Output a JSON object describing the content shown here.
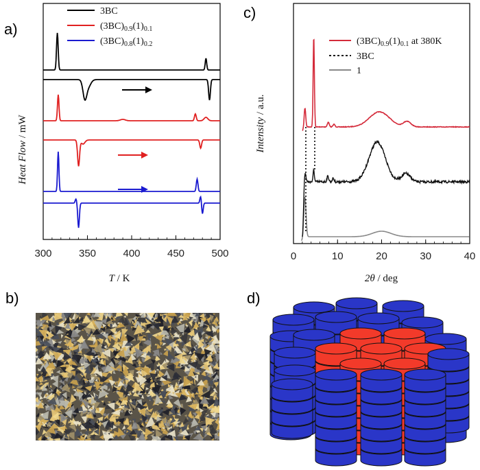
{
  "labels": {
    "a": "a)",
    "b": "b)",
    "c": "c)",
    "d": "d)"
  },
  "chart_data": [
    {
      "panel": "a",
      "type": "line",
      "xlabel": "T / K",
      "ylabel": "Heat Flow / mW",
      "xlim": [
        300,
        500
      ],
      "xticks": [
        "300",
        "350",
        "400",
        "450",
        "500"
      ],
      "series": [
        {
          "name": "3BC",
          "color": "#000000",
          "heating_peaks_K": [
            316,
            484
          ],
          "cooling_peaks_K": [
            348,
            488
          ]
        },
        {
          "name": "(3BC)0.9(1)0.1",
          "color": "#e02020",
          "heating_peaks_K": [
            317,
            474
          ],
          "cooling_peaks_K": [
            341,
            478
          ]
        },
        {
          "name": "(3BC)0.8(1)0.2",
          "color": "#1a1ad0",
          "heating_peaks_K": [
            317,
            475
          ],
          "cooling_peaks_K": [
            340,
            479
          ]
        }
      ]
    },
    {
      "panel": "c",
      "type": "line",
      "xlabel": "2θ / deg",
      "ylabel": "Intensity / a.u.",
      "xlim": [
        0,
        40
      ],
      "xticks": [
        "0",
        "10",
        "20",
        "30",
        "40"
      ],
      "series": [
        {
          "name": "(3BC)0.9(1)0.1 at 380K",
          "color": "#d42a3a",
          "peaks_deg": [
            2.6,
            4.6,
            7.9,
            19.5,
            25.8
          ]
        },
        {
          "name": "3BC",
          "color": "#111111",
          "peaks_deg": [
            2.6,
            4.6,
            7.8,
            19.0,
            25.5
          ]
        },
        {
          "name": "1",
          "color": "#888888",
          "peaks_deg": [
            2.6,
            20.0
          ]
        }
      ]
    }
  ],
  "panel_a": {
    "xlabel_sym": "T",
    "xlabel_unit": " / K",
    "ylabel_sym": "Heat Flow",
    "ylabel_unit": " / mW",
    "legend": {
      "l1": "3BC",
      "l2": "(3BC)",
      "l2sub1": "0.9",
      "l2mid": "(1)",
      "l2sub2": "0.1",
      "l3": "(3BC)",
      "l3sub1": "0.8",
      "l3mid": "(1)",
      "l3sub2": "0.2"
    }
  },
  "panel_c": {
    "xlabel_sym": "2θ",
    "xlabel_unit": " / deg",
    "ylabel_sym": "Intensity",
    "ylabel_unit": " / a.u.",
    "legend": {
      "l1a": "(3BC)",
      "l1sub1": "0.9",
      "l1mid": "(1)",
      "l1sub2": "0.1",
      "l1b": " at 380K",
      "l2": "3BC",
      "l3": "1"
    }
  },
  "colors": {
    "black": "#000000",
    "red": "#e02020",
    "blue": "#1a1ad0",
    "xrd_red": "#d42a3a",
    "gray": "#888888",
    "disc_blue": "#2a36c8",
    "disc_red": "#f23a2a"
  }
}
